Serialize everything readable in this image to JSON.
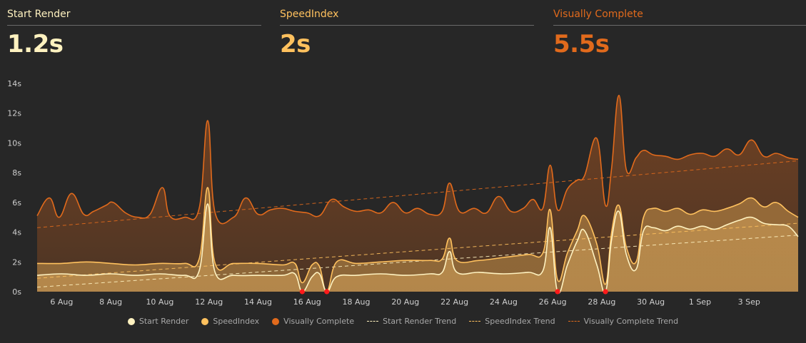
{
  "kpis": [
    {
      "label": "Start Render",
      "value": "1.2s",
      "color": "#fff2c0"
    },
    {
      "label": "SpeedIndex",
      "value": "2s",
      "color": "#ffc15e"
    },
    {
      "label": "Visually Complete",
      "value": "5.5s",
      "color": "#e16a1c"
    }
  ],
  "chart_data": {
    "type": "area",
    "y_unit": "s",
    "ylim": [
      0,
      14
    ],
    "y_ticks": [
      "0s",
      "2s",
      "4s",
      "6s",
      "8s",
      "10s",
      "12s",
      "14s"
    ],
    "x_range_days": [
      0,
      31
    ],
    "x_ticks": [
      {
        "label": "6 Aug",
        "day": 1
      },
      {
        "label": "8 Aug",
        "day": 3
      },
      {
        "label": "10 Aug",
        "day": 5
      },
      {
        "label": "12 Aug",
        "day": 7
      },
      {
        "label": "14 Aug",
        "day": 9
      },
      {
        "label": "16 Aug",
        "day": 11
      },
      {
        "label": "18 Aug",
        "day": 13
      },
      {
        "label": "20 Aug",
        "day": 15
      },
      {
        "label": "22 Aug",
        "day": 17
      },
      {
        "label": "24 Aug",
        "day": 19
      },
      {
        "label": "26 Aug",
        "day": 21
      },
      {
        "label": "28 Aug",
        "day": 23
      },
      {
        "label": "30 Aug",
        "day": 25
      },
      {
        "label": "1 Sep",
        "day": 27
      },
      {
        "label": "3 Sep",
        "day": 29
      }
    ],
    "series": [
      {
        "name": "Visually Complete",
        "color": "#e16a1c",
        "points": [
          [
            0,
            5.1
          ],
          [
            0.5,
            6.3
          ],
          [
            0.9,
            5
          ],
          [
            1.4,
            6.6
          ],
          [
            1.9,
            5.2
          ],
          [
            2.3,
            5.4
          ],
          [
            2.8,
            5.8
          ],
          [
            3.1,
            6
          ],
          [
            3.6,
            5.3
          ],
          [
            4.1,
            5
          ],
          [
            4.6,
            5.2
          ],
          [
            5.1,
            7
          ],
          [
            5.4,
            5.1
          ],
          [
            6,
            5
          ],
          [
            6.6,
            5.6
          ],
          [
            6.95,
            11.5
          ],
          [
            7.25,
            5.3
          ],
          [
            8,
            5
          ],
          [
            8.5,
            6.3
          ],
          [
            9,
            5.2
          ],
          [
            9.5,
            5.5
          ],
          [
            10,
            5.6
          ],
          [
            10.5,
            5.4
          ],
          [
            11,
            5.3
          ],
          [
            11.5,
            5.1
          ],
          [
            12,
            6.2
          ],
          [
            12.5,
            5.7
          ],
          [
            13,
            5.4
          ],
          [
            13.5,
            5.5
          ],
          [
            14,
            5.3
          ],
          [
            14.5,
            6
          ],
          [
            15,
            5.3
          ],
          [
            15.5,
            5.6
          ],
          [
            16,
            5.2
          ],
          [
            16.5,
            5.4
          ],
          [
            16.8,
            7.3
          ],
          [
            17.2,
            5.4
          ],
          [
            17.8,
            5.6
          ],
          [
            18.3,
            5.3
          ],
          [
            18.8,
            6.4
          ],
          [
            19.3,
            5.4
          ],
          [
            19.8,
            5.6
          ],
          [
            20.2,
            6.2
          ],
          [
            20.6,
            5.6
          ],
          [
            20.9,
            8.5
          ],
          [
            21.2,
            5.5
          ],
          [
            21.6,
            6.9
          ],
          [
            22,
            7.5
          ],
          [
            22.3,
            7.8
          ],
          [
            22.8,
            10.3
          ],
          [
            23.15,
            5.8
          ],
          [
            23.4,
            8.3
          ],
          [
            23.7,
            13.2
          ],
          [
            24,
            8.2
          ],
          [
            24.4,
            9
          ],
          [
            24.7,
            9.5
          ],
          [
            25.1,
            9.2
          ],
          [
            25.6,
            9.1
          ],
          [
            26.1,
            8.9
          ],
          [
            26.6,
            9.2
          ],
          [
            27.1,
            9.3
          ],
          [
            27.6,
            9.1
          ],
          [
            28.1,
            9.6
          ],
          [
            28.6,
            9.2
          ],
          [
            29.1,
            10.2
          ],
          [
            29.6,
            9.1
          ],
          [
            30.1,
            9.3
          ],
          [
            30.6,
            9
          ],
          [
            31,
            8.9
          ]
        ]
      },
      {
        "name": "SpeedIndex",
        "color": "#ffc15e",
        "points": [
          [
            0,
            1.9
          ],
          [
            1,
            1.9
          ],
          [
            2,
            2
          ],
          [
            3,
            1.9
          ],
          [
            4,
            1.8
          ],
          [
            5,
            1.9
          ],
          [
            6,
            1.9
          ],
          [
            6.6,
            2.2
          ],
          [
            6.95,
            7
          ],
          [
            7.25,
            1.9
          ],
          [
            8,
            1.9
          ],
          [
            9,
            1.9
          ],
          [
            10,
            1.8
          ],
          [
            10.5,
            1.9
          ],
          [
            10.8,
            0.6
          ],
          [
            11.2,
            1.8
          ],
          [
            11.5,
            1.7
          ],
          [
            11.8,
            0
          ],
          [
            12.2,
            2
          ],
          [
            13,
            1.9
          ],
          [
            14,
            2
          ],
          [
            15,
            2.1
          ],
          [
            16,
            2.1
          ],
          [
            16.5,
            2.2
          ],
          [
            16.8,
            3.6
          ],
          [
            17.1,
            2.1
          ],
          [
            18,
            2.1
          ],
          [
            19,
            2.3
          ],
          [
            20,
            2.5
          ],
          [
            20.6,
            2.6
          ],
          [
            20.9,
            5.5
          ],
          [
            21.2,
            0.8
          ],
          [
            21.6,
            2.6
          ],
          [
            22,
            4.1
          ],
          [
            22.3,
            5.1
          ],
          [
            22.8,
            3.2
          ],
          [
            23.15,
            0.5
          ],
          [
            23.4,
            4
          ],
          [
            23.7,
            5.8
          ],
          [
            24,
            3
          ],
          [
            24.4,
            2
          ],
          [
            24.7,
            5
          ],
          [
            25.1,
            5.6
          ],
          [
            25.6,
            5.4
          ],
          [
            26.1,
            5.6
          ],
          [
            26.6,
            5.2
          ],
          [
            27.1,
            5.5
          ],
          [
            27.6,
            5.4
          ],
          [
            28.1,
            5.6
          ],
          [
            28.6,
            5.9
          ],
          [
            29.1,
            6.3
          ],
          [
            29.6,
            5.7
          ],
          [
            30.1,
            6
          ],
          [
            30.6,
            5.4
          ],
          [
            31,
            5
          ]
        ]
      },
      {
        "name": "Start Render",
        "color": "#fff2c0",
        "points": [
          [
            0,
            1.1
          ],
          [
            1,
            1.2
          ],
          [
            2,
            1.1
          ],
          [
            3,
            1.2
          ],
          [
            4,
            1.1
          ],
          [
            5,
            1.2
          ],
          [
            6,
            1.1
          ],
          [
            6.6,
            1.4
          ],
          [
            6.95,
            5.9
          ],
          [
            7.25,
            1.3
          ],
          [
            8,
            1.1
          ],
          [
            9,
            1.1
          ],
          [
            10,
            1.1
          ],
          [
            10.5,
            1.2
          ],
          [
            10.8,
            0
          ],
          [
            11.2,
            1
          ],
          [
            11.5,
            1.2
          ],
          [
            11.8,
            0
          ],
          [
            12.2,
            1
          ],
          [
            13,
            1.1
          ],
          [
            14,
            1.2
          ],
          [
            15,
            1.1
          ],
          [
            16,
            1.2
          ],
          [
            16.5,
            1.3
          ],
          [
            16.8,
            2.7
          ],
          [
            17.1,
            1.3
          ],
          [
            18,
            1.3
          ],
          [
            19,
            1.2
          ],
          [
            20,
            1.3
          ],
          [
            20.6,
            1.4
          ],
          [
            20.9,
            4.3
          ],
          [
            21.2,
            0
          ],
          [
            21.6,
            1.8
          ],
          [
            22,
            3.4
          ],
          [
            22.3,
            4.1
          ],
          [
            22.8,
            1.8
          ],
          [
            23.15,
            0
          ],
          [
            23.4,
            3.5
          ],
          [
            23.7,
            5.4
          ],
          [
            24,
            2.5
          ],
          [
            24.4,
            1.5
          ],
          [
            24.7,
            4.1
          ],
          [
            25.1,
            4.3
          ],
          [
            25.6,
            4.1
          ],
          [
            26.1,
            4.4
          ],
          [
            26.6,
            4.2
          ],
          [
            27.1,
            4.4
          ],
          [
            27.6,
            4.2
          ],
          [
            28.1,
            4.5
          ],
          [
            28.6,
            4.8
          ],
          [
            29.1,
            5
          ],
          [
            29.6,
            4.6
          ],
          [
            30.1,
            4.5
          ],
          [
            30.6,
            4.4
          ],
          [
            31,
            3.7
          ]
        ]
      }
    ],
    "trends": [
      {
        "name": "Start Render Trend",
        "color": "#fff2c0",
        "from": [
          0,
          0.3
        ],
        "to": [
          31,
          3.8
        ]
      },
      {
        "name": "SpeedIndex Trend",
        "color": "#ffc15e",
        "from": [
          0,
          0.9
        ],
        "to": [
          31,
          4.6
        ]
      },
      {
        "name": "Visually Complete Trend",
        "color": "#e16a1c",
        "from": [
          0,
          4.3
        ],
        "to": [
          31,
          8.8
        ]
      }
    ],
    "markers": [
      {
        "day": 10.8,
        "value": 0
      },
      {
        "day": 11.8,
        "value": 0
      },
      {
        "day": 21.2,
        "value": 0
      },
      {
        "day": 23.15,
        "value": 0
      }
    ],
    "marker_color": "#ff1a1a"
  },
  "legend": [
    {
      "label": "Start Render",
      "kind": "dot",
      "color": "#fff2c0"
    },
    {
      "label": "SpeedIndex",
      "kind": "dot",
      "color": "#ffc15e"
    },
    {
      "label": "Visually Complete",
      "kind": "dot",
      "color": "#e16a1c"
    },
    {
      "label": "Start Render Trend",
      "kind": "dash",
      "color": "#fff2c0"
    },
    {
      "label": "SpeedIndex Trend",
      "kind": "dash",
      "color": "#ffc15e"
    },
    {
      "label": "Visually Complete Trend",
      "kind": "dash",
      "color": "#e16a1c"
    }
  ]
}
